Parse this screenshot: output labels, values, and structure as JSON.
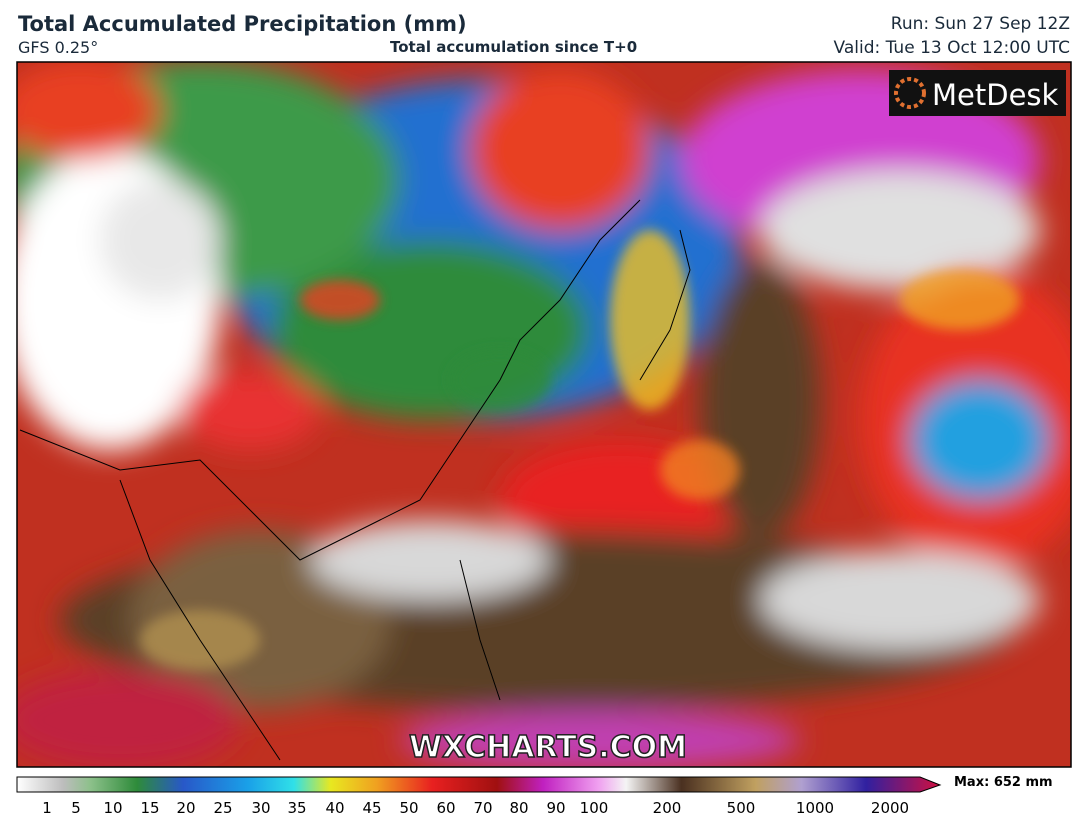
{
  "header": {
    "title": "Total Accumulated Precipitation (mm)",
    "model": "GFS 0.25°",
    "subtitle": "Total accumulation since T+0",
    "run": "Run: Sun 27 Sep 12Z",
    "valid": "Valid: Tue 13 Oct 12:00 UTC"
  },
  "logo": "MetDesk",
  "watermark": "WXCHARTS.COM",
  "colorbar": {
    "ticks": [
      1,
      5,
      10,
      15,
      20,
      25,
      30,
      35,
      40,
      45,
      50,
      60,
      70,
      80,
      90,
      100,
      200,
      500,
      1000,
      2000
    ],
    "max_label": "Max: 652 mm"
  }
}
